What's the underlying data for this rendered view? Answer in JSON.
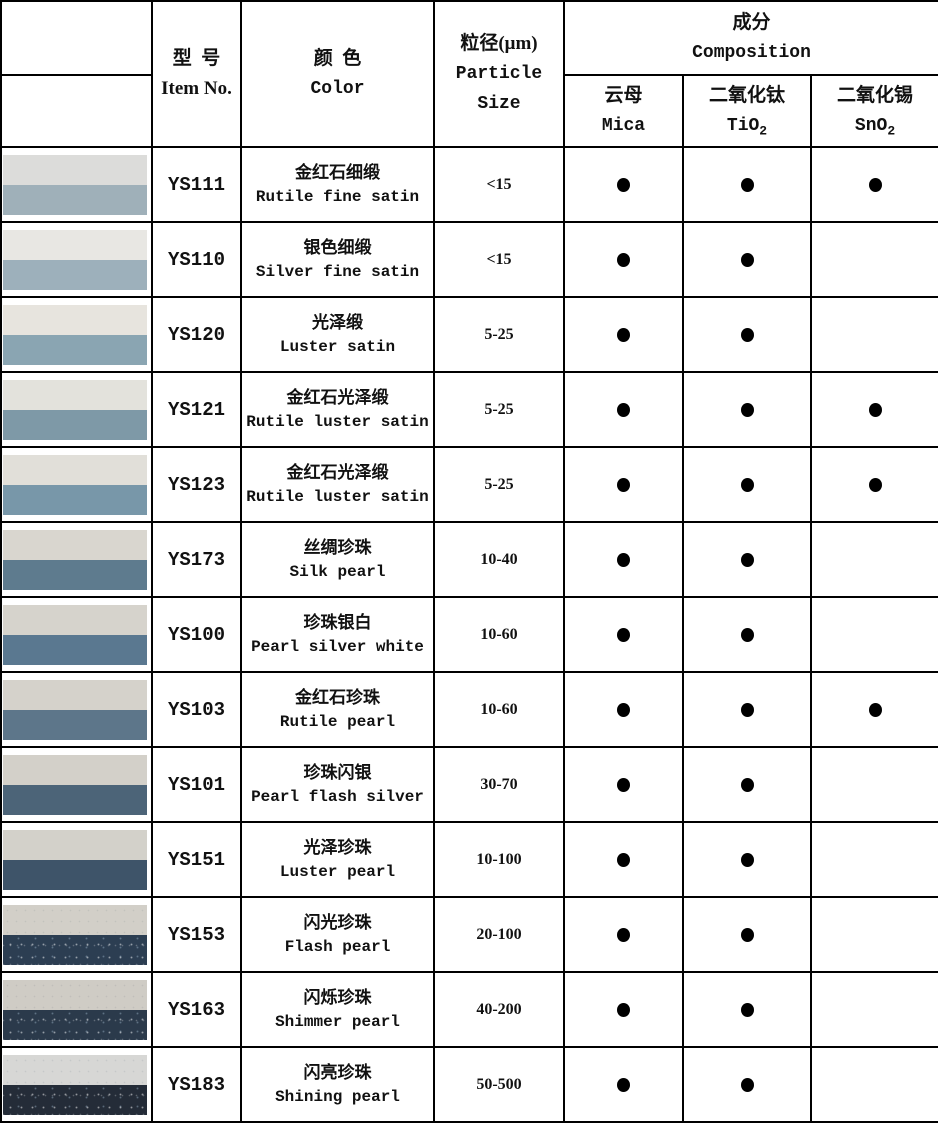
{
  "header": {
    "item_no": {
      "zh": "型  号",
      "en": "Item No."
    },
    "color": {
      "zh": "颜  色",
      "en": "Color"
    },
    "particle": {
      "zh": "粒径(μm)",
      "en_line1": "Particle",
      "en_line2": "Size"
    },
    "composition": {
      "zh": "成分",
      "en": "Composition"
    },
    "mica": {
      "zh": "云母",
      "en": "Mica"
    },
    "tio2": {
      "zh": "二氧化钛",
      "formula_base": "TiO",
      "formula_sub": "2"
    },
    "sno2": {
      "zh": "二氧化锡",
      "formula_base": "SnO",
      "formula_sub": "2"
    }
  },
  "dot_color": "#000000",
  "rows": [
    {
      "item": "YS111",
      "color_zh": "金红石细缎",
      "color_en": "Rutile fine satin",
      "size": "<15",
      "mica": true,
      "tio2": true,
      "sno2": true,
      "swatch_top": "#dcdcda",
      "swatch_bottom": "#9fb0b9",
      "sparkle": false
    },
    {
      "item": "YS110",
      "color_zh": "银色细缎",
      "color_en": "Silver fine satin",
      "size": "<15",
      "mica": true,
      "tio2": true,
      "sno2": false,
      "swatch_top": "#e8e7e3",
      "swatch_bottom": "#9db0bb",
      "sparkle": false
    },
    {
      "item": "YS120",
      "color_zh": "光泽缎",
      "color_en": "Luster satin",
      "size": "5-25",
      "mica": true,
      "tio2": true,
      "sno2": false,
      "swatch_top": "#e7e4de",
      "swatch_bottom": "#8aa5b2",
      "sparkle": false
    },
    {
      "item": "YS121",
      "color_zh": "金红石光泽缎",
      "color_en": "Rutile luster satin",
      "size": "5-25",
      "mica": true,
      "tio2": true,
      "sno2": true,
      "swatch_top": "#e3e2dc",
      "swatch_bottom": "#7e99a7",
      "sparkle": false
    },
    {
      "item": "YS123",
      "color_zh": "金红石光泽缎",
      "color_en": "Rutile luster satin",
      "size": "5-25",
      "mica": true,
      "tio2": true,
      "sno2": true,
      "swatch_top": "#e1dfd9",
      "swatch_bottom": "#7897a9",
      "sparkle": false
    },
    {
      "item": "YS173",
      "color_zh": "丝绸珍珠",
      "color_en": "Silk pearl",
      "size": "10-40",
      "mica": true,
      "tio2": true,
      "sno2": false,
      "swatch_top": "#d9d6cf",
      "swatch_bottom": "#5e7b8e",
      "sparkle": false
    },
    {
      "item": "YS100",
      "color_zh": "珍珠银白",
      "color_en": "Pearl silver white",
      "size": "10-60",
      "mica": true,
      "tio2": true,
      "sno2": false,
      "swatch_top": "#d6d3cc",
      "swatch_bottom": "#5a7890",
      "sparkle": false
    },
    {
      "item": "YS103",
      "color_zh": "金红石珍珠",
      "color_en": "Rutile pearl",
      "size": "10-60",
      "mica": true,
      "tio2": true,
      "sno2": true,
      "swatch_top": "#d5d2cb",
      "swatch_bottom": "#5d768a",
      "sparkle": false
    },
    {
      "item": "YS101",
      "color_zh": "珍珠闪银",
      "color_en": "Pearl flash silver",
      "size": "30-70",
      "mica": true,
      "tio2": true,
      "sno2": false,
      "swatch_top": "#d3d0c9",
      "swatch_bottom": "#4c6478",
      "sparkle": false
    },
    {
      "item": "YS151",
      "color_zh": "光泽珍珠",
      "color_en": "Luster pearl",
      "size": "10-100",
      "mica": true,
      "tio2": true,
      "sno2": false,
      "swatch_top": "#d3d1ca",
      "swatch_bottom": "#3e5469",
      "sparkle": false
    },
    {
      "item": "YS153",
      "color_zh": "闪光珍珠",
      "color_en": "Flash pearl",
      "size": "20-100",
      "mica": true,
      "tio2": true,
      "sno2": false,
      "swatch_top": "#d2cfc8",
      "swatch_bottom": "#2c3e52",
      "sparkle": true
    },
    {
      "item": "YS163",
      "color_zh": "闪烁珍珠",
      "color_en": "Shimmer pearl",
      "size": "40-200",
      "mica": true,
      "tio2": true,
      "sno2": false,
      "swatch_top": "#cfccc5",
      "swatch_bottom": "#2b3a4b",
      "sparkle": true
    },
    {
      "item": "YS183",
      "color_zh": "闪亮珍珠",
      "color_en": "Shining pearl",
      "size": "50-500",
      "mica": true,
      "tio2": true,
      "sno2": false,
      "swatch_top": "#d7d7d5",
      "swatch_bottom": "#242c38",
      "sparkle": true
    }
  ]
}
